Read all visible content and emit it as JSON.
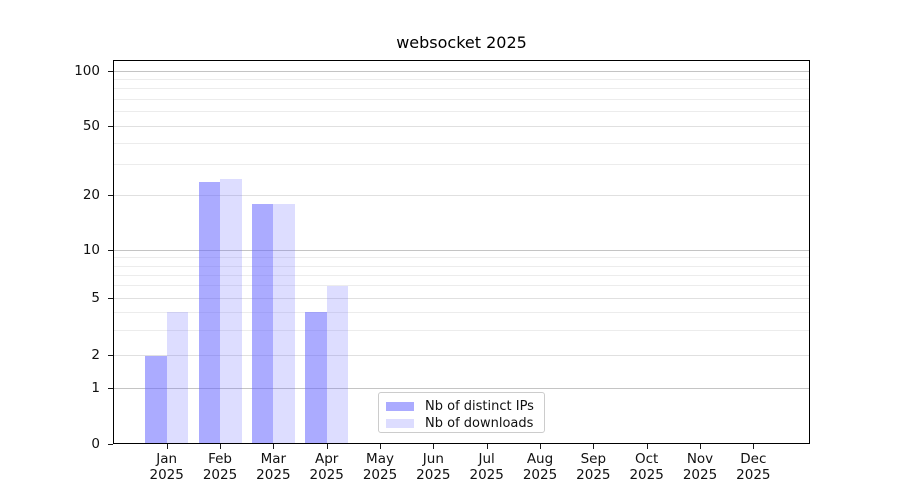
{
  "chart_data": {
    "type": "bar",
    "title": "websocket 2025",
    "x_categories": [
      "Jan",
      "Feb",
      "Mar",
      "Apr",
      "May",
      "Jun",
      "Jul",
      "Aug",
      "Sep",
      "Oct",
      "Nov",
      "Dec"
    ],
    "x_year_suffix": "2025",
    "series": [
      {
        "name": "Nb of distinct IPs",
        "color": "rgba(102,102,255,0.55)",
        "solid_color": "#a9a9f7",
        "values": [
          2,
          24,
          18,
          4,
          0,
          0,
          0,
          0,
          0,
          0,
          0,
          0
        ]
      },
      {
        "name": "Nb of downloads",
        "color": "rgba(102,102,255,0.22)",
        "solid_color": "#dcdcf8",
        "values": [
          4,
          25,
          18,
          6,
          0,
          0,
          0,
          0,
          0,
          0,
          0,
          0
        ]
      }
    ],
    "y_axis": {
      "scale": "log with zero baseline",
      "tick_labels": [
        100,
        50,
        20,
        10,
        5,
        2,
        1,
        0
      ],
      "range_top": 100
    },
    "grid": {
      "major": [
        1,
        10,
        100
      ],
      "labeled_minor": [
        2,
        5,
        20,
        50
      ],
      "minor": [
        3,
        4,
        6,
        7,
        8,
        9,
        30,
        40,
        60,
        70,
        80,
        90
      ],
      "major_color": "#c4c4c4",
      "labeled_minor_color": "#e0e0e0",
      "minor_color": "#ececec"
    },
    "legend": {
      "position": "bottom-center"
    }
  },
  "colors": {
    "background": "#ffffff",
    "spine": "#000000",
    "text": "#111111",
    "legend_border": "#cccccc"
  }
}
